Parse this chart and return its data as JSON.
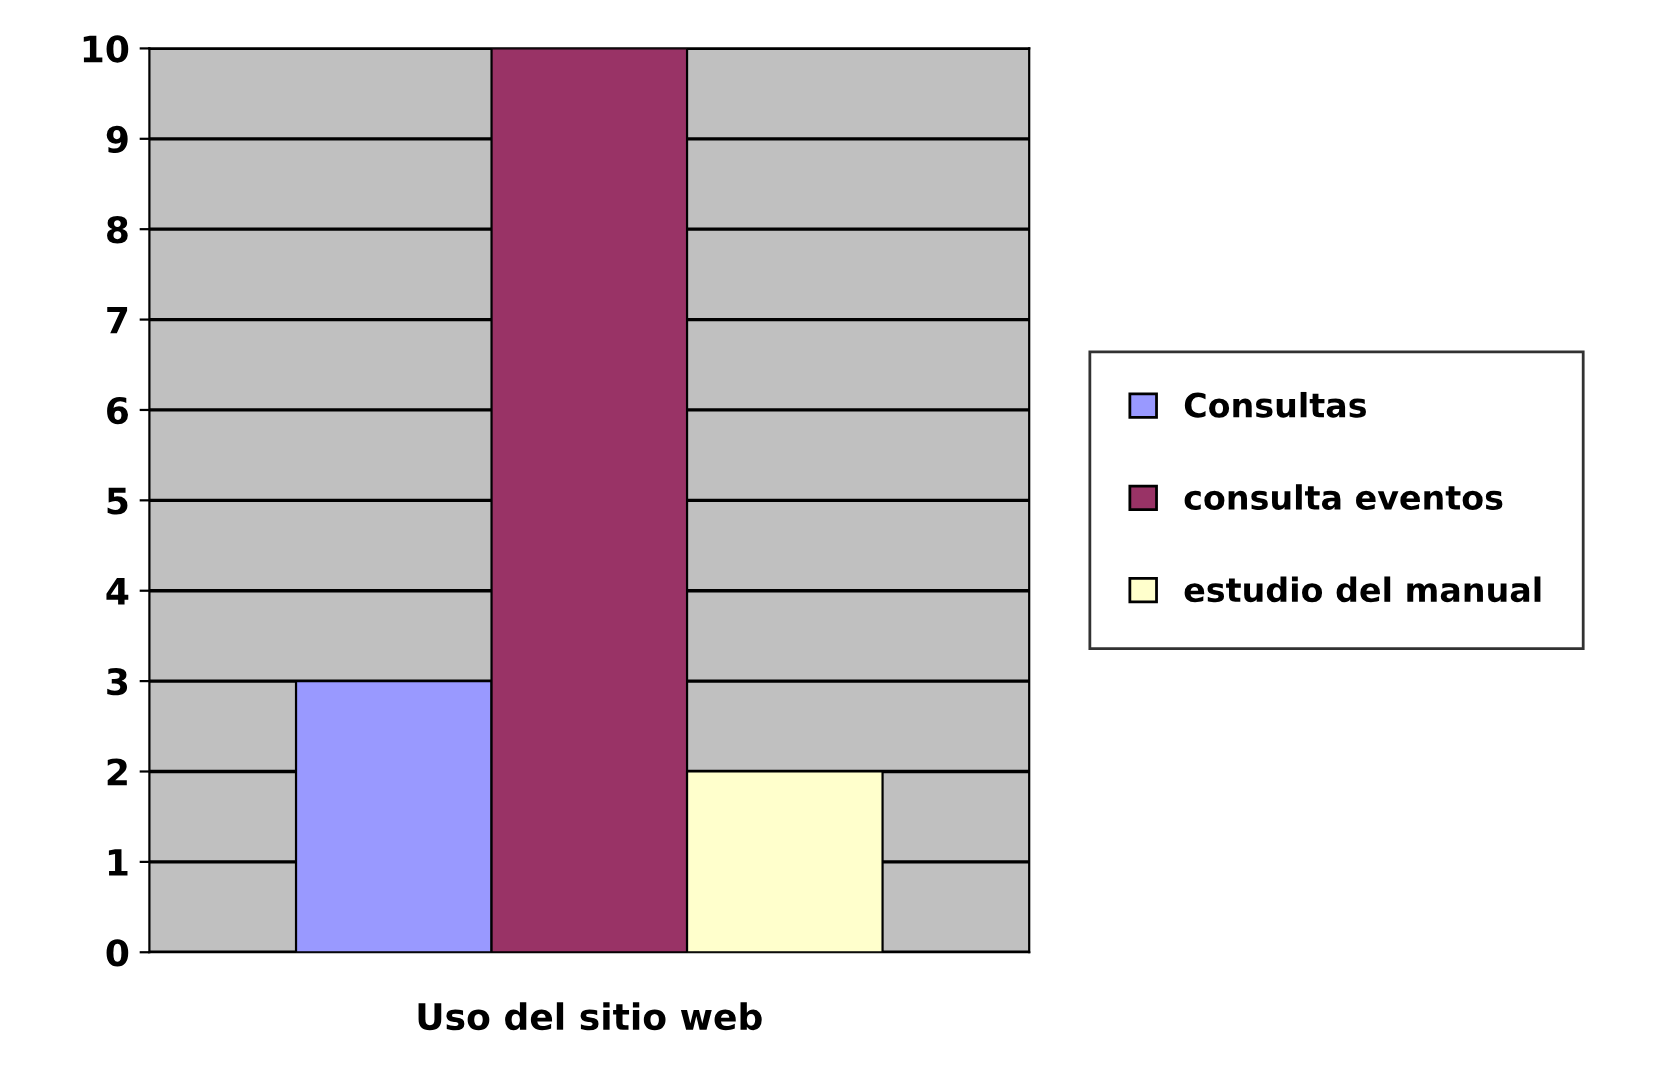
{
  "chart_data": {
    "type": "bar",
    "categories": [
      "Uso del sitio web"
    ],
    "series": [
      {
        "name": "Consultas",
        "color": "#9999ff",
        "values": [
          3
        ]
      },
      {
        "name": "consulta eventos",
        "color": "#993366",
        "values": [
          10
        ]
      },
      {
        "name": "estudio del manual",
        "color": "#ffffcc",
        "values": [
          2
        ]
      }
    ],
    "ylim": [
      0,
      10
    ],
    "yticks": [
      0,
      1,
      2,
      3,
      4,
      5,
      6,
      7,
      8,
      9,
      10
    ],
    "grid": "y",
    "legend": "right"
  }
}
